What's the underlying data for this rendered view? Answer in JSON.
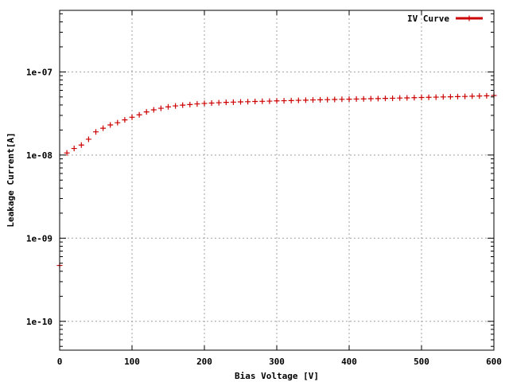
{
  "chart_data": {
    "type": "scatter",
    "title": "",
    "xlabel": "Bias Voltage [V]",
    "ylabel": "Leakage Current[A]",
    "xlim": [
      0,
      600
    ],
    "ylim": [
      4.5e-11,
      5.5e-07
    ],
    "yscale": "log",
    "grid": true,
    "legend_position": "top-right",
    "x_ticks": [
      {
        "value": 0,
        "label": "0"
      },
      {
        "value": 100,
        "label": "100"
      },
      {
        "value": 200,
        "label": "200"
      },
      {
        "value": 300,
        "label": "300"
      },
      {
        "value": 400,
        "label": "400"
      },
      {
        "value": 500,
        "label": "500"
      },
      {
        "value": 600,
        "label": "600"
      }
    ],
    "y_ticks": [
      {
        "value": 1e-10,
        "label": "1e-10"
      },
      {
        "value": 1e-09,
        "label": "1e-09"
      },
      {
        "value": 1e-08,
        "label": "1e-08"
      },
      {
        "value": 1e-07,
        "label": "1e-07"
      }
    ],
    "series": [
      {
        "name": "IV Curve",
        "color": "#cc0000",
        "x": [
          0,
          10,
          20,
          30,
          40,
          50,
          60,
          70,
          80,
          90,
          100,
          110,
          120,
          130,
          140,
          150,
          160,
          170,
          180,
          190,
          200,
          210,
          220,
          230,
          240,
          250,
          260,
          270,
          280,
          290,
          300,
          310,
          320,
          330,
          340,
          350,
          360,
          370,
          380,
          390,
          400,
          410,
          420,
          430,
          440,
          450,
          460,
          470,
          480,
          490,
          500,
          510,
          520,
          530,
          540,
          550,
          560,
          570,
          580,
          590,
          600
        ],
        "y": [
          4.7e-10,
          1.06e-08,
          1.2e-08,
          1.32e-08,
          1.55e-08,
          1.9e-08,
          2.1e-08,
          2.3e-08,
          2.45e-08,
          2.65e-08,
          2.85e-08,
          3.05e-08,
          3.3e-08,
          3.5e-08,
          3.65e-08,
          3.8e-08,
          3.9e-08,
          3.98e-08,
          4.05e-08,
          4.12e-08,
          4.18e-08,
          4.22e-08,
          4.26e-08,
          4.3e-08,
          4.33e-08,
          4.36e-08,
          4.38e-08,
          4.41e-08,
          4.43e-08,
          4.45e-08,
          4.48e-08,
          4.5e-08,
          4.52e-08,
          4.55e-08,
          4.57e-08,
          4.6e-08,
          4.62e-08,
          4.64e-08,
          4.66e-08,
          4.68e-08,
          4.7e-08,
          4.72e-08,
          4.74e-08,
          4.76e-08,
          4.78e-08,
          4.8e-08,
          4.82e-08,
          4.85e-08,
          4.87e-08,
          4.9e-08,
          4.92e-08,
          4.95e-08,
          4.97e-08,
          5e-08,
          5.02e-08,
          5.05e-08,
          5.07e-08,
          5.1e-08,
          5.13e-08,
          5.16e-08,
          5.2e-08
        ]
      }
    ]
  }
}
